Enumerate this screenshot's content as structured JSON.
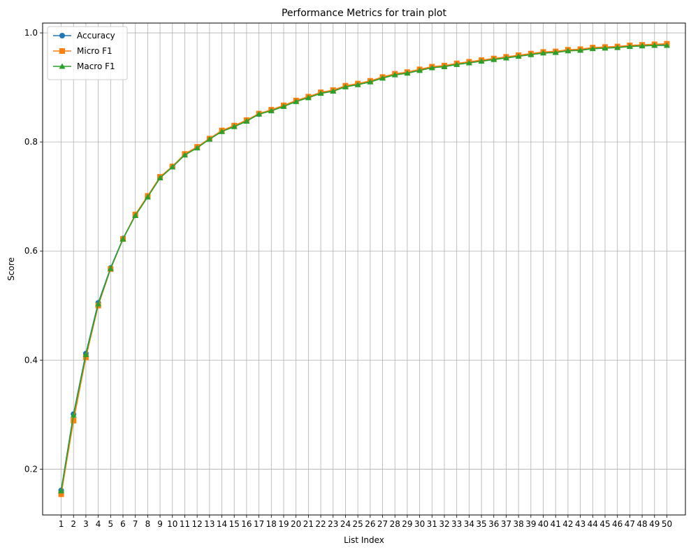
{
  "chart_data": {
    "type": "line",
    "title": "Performance Metrics for train plot",
    "xlabel": "List Index",
    "ylabel": "Score",
    "x": [
      1,
      2,
      3,
      4,
      5,
      6,
      7,
      8,
      9,
      10,
      11,
      12,
      13,
      14,
      15,
      16,
      17,
      18,
      19,
      20,
      21,
      22,
      23,
      24,
      25,
      26,
      27,
      28,
      29,
      30,
      31,
      32,
      33,
      34,
      35,
      36,
      37,
      38,
      39,
      40,
      41,
      42,
      43,
      44,
      45,
      46,
      47,
      48,
      49,
      50
    ],
    "xticks": [
      "1",
      "2",
      "3",
      "4",
      "5",
      "6",
      "7",
      "8",
      "9",
      "10",
      "11",
      "12",
      "13",
      "14",
      "15",
      "16",
      "17",
      "18",
      "19",
      "20",
      "21",
      "22",
      "23",
      "24",
      "25",
      "26",
      "27",
      "28",
      "29",
      "30",
      "31",
      "32",
      "33",
      "34",
      "35",
      "36",
      "37",
      "38",
      "39",
      "40",
      "41",
      "42",
      "43",
      "44",
      "45",
      "46",
      "47",
      "48",
      "49",
      "50"
    ],
    "yticks": [
      "0.2",
      "0.4",
      "0.6",
      "0.8",
      "1.0"
    ],
    "ylim": [
      0.116,
      1.018
    ],
    "xlim": [
      -0.5,
      51.5
    ],
    "grid": true,
    "legend_position": "top-left",
    "series": [
      {
        "name": "Accuracy",
        "color": "#1f77b4",
        "marker": "circle",
        "values": [
          0.161,
          0.301,
          0.412,
          0.505,
          0.569,
          0.623,
          0.666,
          0.7,
          0.735,
          0.755,
          0.777,
          0.79,
          0.806,
          0.82,
          0.829,
          0.839,
          0.851,
          0.858,
          0.866,
          0.875,
          0.882,
          0.89,
          0.894,
          0.902,
          0.906,
          0.911,
          0.918,
          0.924,
          0.927,
          0.932,
          0.937,
          0.939,
          0.943,
          0.946,
          0.949,
          0.952,
          0.955,
          0.958,
          0.961,
          0.964,
          0.965,
          0.968,
          0.969,
          0.972,
          0.973,
          0.974,
          0.976,
          0.977,
          0.978,
          0.978
        ]
      },
      {
        "name": "Micro F1",
        "color": "#ff7f0e",
        "marker": "square",
        "values": [
          0.154,
          0.289,
          0.405,
          0.5,
          0.567,
          0.622,
          0.667,
          0.701,
          0.736,
          0.755,
          0.778,
          0.791,
          0.806,
          0.821,
          0.83,
          0.84,
          0.852,
          0.859,
          0.867,
          0.876,
          0.883,
          0.891,
          0.895,
          0.903,
          0.907,
          0.912,
          0.919,
          0.925,
          0.928,
          0.933,
          0.938,
          0.94,
          0.944,
          0.947,
          0.95,
          0.953,
          0.956,
          0.959,
          0.962,
          0.965,
          0.966,
          0.969,
          0.97,
          0.973,
          0.974,
          0.975,
          0.977,
          0.978,
          0.979,
          0.98
        ]
      },
      {
        "name": "Macro F1",
        "color": "#2ca02c",
        "marker": "triangle",
        "values": [
          0.16,
          0.299,
          0.41,
          0.503,
          0.568,
          0.622,
          0.665,
          0.699,
          0.734,
          0.754,
          0.776,
          0.789,
          0.805,
          0.819,
          0.828,
          0.838,
          0.851,
          0.857,
          0.865,
          0.874,
          0.881,
          0.889,
          0.893,
          0.901,
          0.905,
          0.91,
          0.917,
          0.923,
          0.926,
          0.931,
          0.936,
          0.938,
          0.942,
          0.945,
          0.948,
          0.951,
          0.954,
          0.957,
          0.96,
          0.963,
          0.964,
          0.967,
          0.968,
          0.971,
          0.972,
          0.973,
          0.975,
          0.976,
          0.977,
          0.977
        ]
      }
    ]
  }
}
